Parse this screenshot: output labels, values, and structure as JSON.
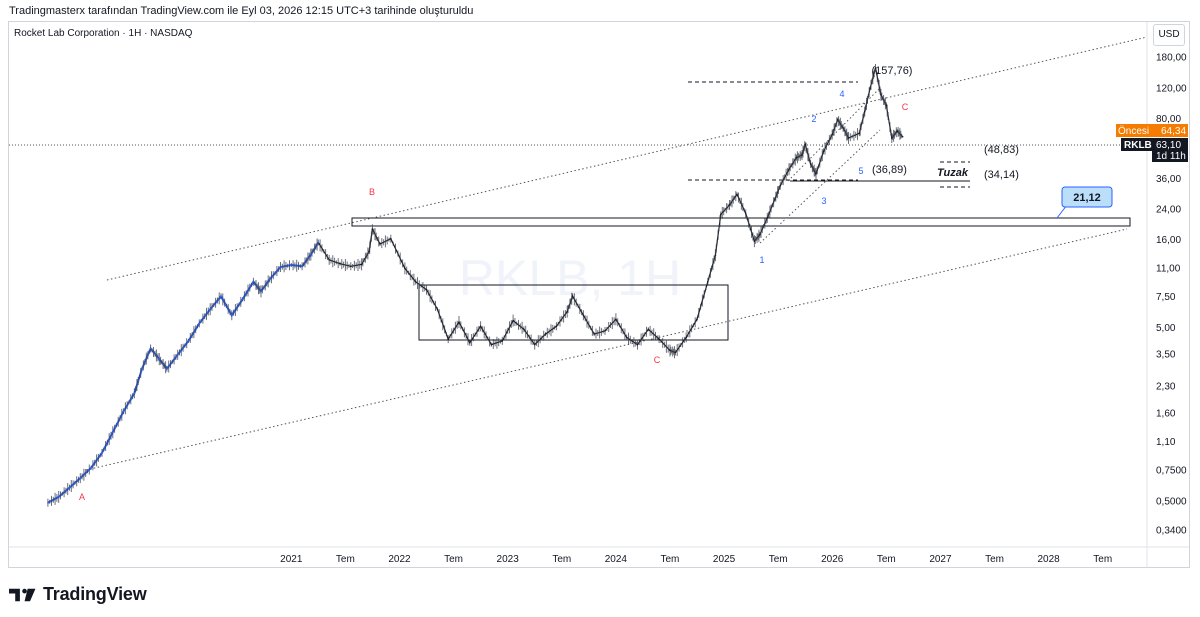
{
  "header": {
    "caption": "Tradingmasterx tarafından TradingView.com ile Eyl 03, 2026 12:15 UTC+3 tarihinde oluşturuldu"
  },
  "symbol_line": "Rocket Lab Corporation · 1H · NASDAQ",
  "currency": "USD",
  "watermark": "RKLB, 1H",
  "footer": {
    "brand": "TradingView"
  },
  "colors": {
    "price_line": "#131722",
    "early_price": "#2962ff",
    "wave_red": "#f23645",
    "wave_blue": "#2962ff",
    "accent_orange": "#f57c00",
    "badge_dark": "#131722",
    "callout_blue": "#bbdefb"
  },
  "price_tags": {
    "premarket": {
      "label": "Öncesi",
      "value": "64,34"
    },
    "current": {
      "ticker": "RKLB",
      "value": "63,10",
      "countdown": "1d 11h"
    }
  },
  "annotations": {
    "wave_letters": [
      "A",
      "B",
      "C",
      "C"
    ],
    "wave_numbers": [
      "1",
      "2",
      "3",
      "4",
      "5"
    ],
    "price_marks": [
      "(157,76)",
      "(48,83)",
      "(36,89)",
      "(34,14)"
    ],
    "trap": "Tuzak",
    "callout": "21,12"
  },
  "chart_data": {
    "type": "line",
    "y_scale": "log",
    "ylim": [
      0.28,
      260
    ],
    "y_ticks": [
      0.34,
      0.5,
      0.75,
      1.1,
      1.6,
      2.3,
      3.5,
      5,
      7.5,
      11,
      16,
      24,
      36,
      53,
      80,
      120,
      180
    ],
    "y_tick_labels": [
      "0,3400",
      "0,5000",
      "0,7500",
      "1,10",
      "1,60",
      "2,30",
      "3,50",
      "5,00",
      "7,50",
      "11,00",
      "16,00",
      "24,00",
      "36,00",
      "53,00",
      "80,00",
      "120,00",
      "180,00"
    ],
    "x_tick_labels": [
      "2021",
      "Tem",
      "2022",
      "Tem",
      "2023",
      "Tem",
      "2024",
      "Tem",
      "2025",
      "Tem",
      "2026",
      "Tem",
      "2027",
      "Tem",
      "2028",
      "Tem"
    ],
    "x_ticks": [
      2021.0,
      2021.5,
      2022.0,
      2022.5,
      2023.0,
      2023.5,
      2024.0,
      2024.5,
      2025.0,
      2025.5,
      2026.0,
      2026.5,
      2027.0,
      2027.5,
      2028.0,
      2028.5
    ],
    "xlim": [
      2018.4,
      2028.9
    ],
    "series": [
      {
        "points": [
          [
            2018.75,
            0.49
          ],
          [
            2018.85,
            0.53
          ],
          [
            2018.95,
            0.6
          ],
          [
            2019.05,
            0.68
          ],
          [
            2019.15,
            0.78
          ],
          [
            2019.25,
            0.95
          ],
          [
            2019.35,
            1.25
          ],
          [
            2019.45,
            1.65
          ],
          [
            2019.55,
            2.1
          ],
          [
            2019.62,
            2.9
          ],
          [
            2019.7,
            3.8
          ],
          [
            2019.78,
            3.3
          ],
          [
            2019.85,
            2.9
          ],
          [
            2019.95,
            3.5
          ],
          [
            2020.05,
            4.2
          ],
          [
            2020.15,
            5.3
          ],
          [
            2020.25,
            6.4
          ],
          [
            2020.35,
            7.6
          ],
          [
            2020.45,
            5.9
          ],
          [
            2020.55,
            7.3
          ],
          [
            2020.65,
            9.2
          ],
          [
            2020.72,
            8.1
          ],
          [
            2020.8,
            9.5
          ],
          [
            2020.9,
            11.2
          ],
          [
            2021.0,
            11.5
          ],
          [
            2021.1,
            11.3
          ],
          [
            2021.18,
            13.2
          ],
          [
            2021.25,
            15.5
          ],
          [
            2021.35,
            12.3
          ],
          [
            2021.45,
            11.7
          ],
          [
            2021.55,
            11.3
          ],
          [
            2021.65,
            11.6
          ],
          [
            2021.72,
            13.8
          ],
          [
            2021.75,
            18.5
          ],
          [
            2021.82,
            15.2
          ],
          [
            2021.92,
            16.3
          ],
          [
            2022.05,
            11.0
          ],
          [
            2022.15,
            9.2
          ],
          [
            2022.25,
            8.3
          ],
          [
            2022.35,
            6.4
          ],
          [
            2022.45,
            4.3
          ],
          [
            2022.55,
            5.4
          ],
          [
            2022.65,
            4.1
          ],
          [
            2022.75,
            5.1
          ],
          [
            2022.85,
            4.0
          ],
          [
            2022.95,
            4.2
          ],
          [
            2023.05,
            5.5
          ],
          [
            2023.15,
            4.9
          ],
          [
            2023.25,
            4.0
          ],
          [
            2023.35,
            4.6
          ],
          [
            2023.45,
            5.1
          ],
          [
            2023.55,
            6.2
          ],
          [
            2023.6,
            7.6
          ],
          [
            2023.7,
            5.9
          ],
          [
            2023.8,
            4.6
          ],
          [
            2023.9,
            4.8
          ],
          [
            2024.0,
            5.6
          ],
          [
            2024.1,
            4.4
          ],
          [
            2024.2,
            4.0
          ],
          [
            2024.3,
            4.9
          ],
          [
            2024.4,
            4.3
          ],
          [
            2024.5,
            3.7
          ],
          [
            2024.55,
            3.6
          ],
          [
            2024.65,
            4.4
          ],
          [
            2024.75,
            5.6
          ],
          [
            2024.85,
            9.2
          ],
          [
            2024.92,
            13.1
          ],
          [
            2024.97,
            22.5
          ],
          [
            2025.05,
            25.5
          ],
          [
            2025.12,
            29.4
          ],
          [
            2025.2,
            22.8
          ],
          [
            2025.28,
            15.8
          ],
          [
            2025.33,
            17.2
          ],
          [
            2025.4,
            21.5
          ],
          [
            2025.47,
            27.6
          ],
          [
            2025.52,
            33.0
          ],
          [
            2025.6,
            41.0
          ],
          [
            2025.67,
            47.8
          ],
          [
            2025.72,
            49.5
          ],
          [
            2025.75,
            57.0
          ],
          [
            2025.8,
            44.0
          ],
          [
            2025.85,
            38.5
          ],
          [
            2025.92,
            52.0
          ],
          [
            2026.0,
            65.0
          ],
          [
            2026.05,
            79.0
          ],
          [
            2026.1,
            71.0
          ],
          [
            2026.15,
            62.0
          ],
          [
            2026.25,
            66.0
          ],
          [
            2026.3,
            88.0
          ],
          [
            2026.35,
            120.0
          ],
          [
            2026.4,
            157.0
          ],
          [
            2026.45,
            110.0
          ],
          [
            2026.5,
            96.0
          ],
          [
            2026.55,
            62.0
          ],
          [
            2026.6,
            68.0
          ],
          [
            2026.65,
            63.1
          ]
        ]
      }
    ]
  }
}
